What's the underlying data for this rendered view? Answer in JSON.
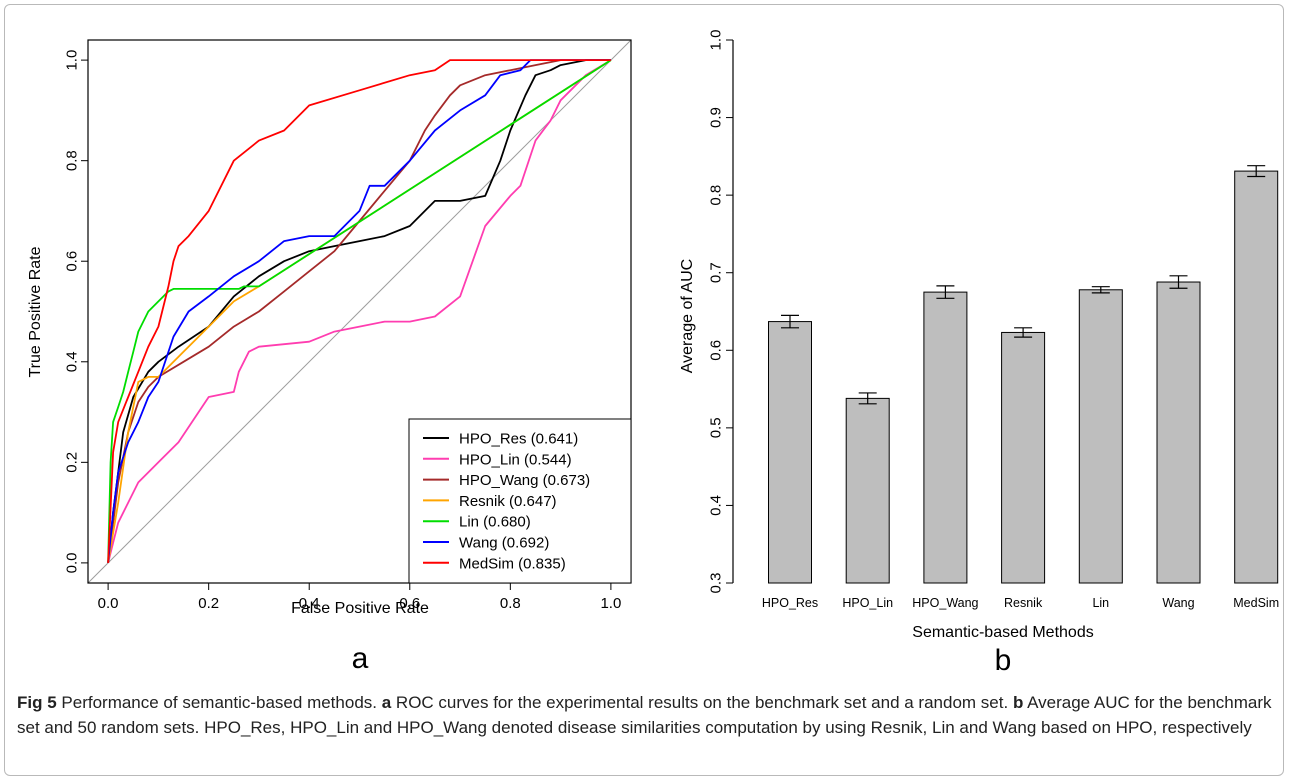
{
  "caption": {
    "fig_label": "Fig 5",
    "intro": " Performance of semantic-based methods. ",
    "label_a": "a",
    "text_a": " ROC curves for the experimental results on the benchmark set and a random set. ",
    "label_b": "b",
    "text_b": " Average AUC for the benchmark set and 50 random sets. HPO_Res, HPO_Lin and HPO_Wang denoted disease similarities computation by using Resnik, Lin and Wang based on HPO, respectively"
  },
  "chart_data": [
    {
      "type": "line",
      "panel_label": "a",
      "xlabel": "False Positive Rate",
      "ylabel": "True Positive Rate",
      "xlim": [
        -0.04,
        1.04
      ],
      "ylim": [
        -0.04,
        1.04
      ],
      "xticks": [
        "0.0",
        "0.2",
        "0.4",
        "0.6",
        "0.8",
        "1.0"
      ],
      "yticks": [
        "0.0",
        "0.2",
        "0.4",
        "0.6",
        "0.8",
        "1.0"
      ],
      "legend_position": "bottom-right",
      "diagonal_color": "#9e9e9e",
      "series": [
        {
          "name": "HPO_Res (0.641)",
          "color": "#000000",
          "x": [
            0,
            0.01,
            0.02,
            0.03,
            0.05,
            0.08,
            0.1,
            0.14,
            0.2,
            0.25,
            0.3,
            0.35,
            0.4,
            0.45,
            0.5,
            0.55,
            0.6,
            0.65,
            0.7,
            0.75,
            0.78,
            0.8,
            0.83,
            0.85,
            0.88,
            0.9,
            0.95,
            1.0
          ],
          "y": [
            0,
            0.1,
            0.18,
            0.26,
            0.33,
            0.38,
            0.4,
            0.43,
            0.47,
            0.53,
            0.57,
            0.6,
            0.62,
            0.63,
            0.64,
            0.65,
            0.67,
            0.72,
            0.72,
            0.73,
            0.8,
            0.86,
            0.93,
            0.97,
            0.98,
            0.99,
            1.0,
            1.0
          ]
        },
        {
          "name": "HPO_Lin (0.544)",
          "color": "#ff3db0",
          "x": [
            0,
            0.01,
            0.02,
            0.04,
            0.06,
            0.08,
            0.1,
            0.14,
            0.18,
            0.2,
            0.25,
            0.26,
            0.28,
            0.3,
            0.4,
            0.45,
            0.5,
            0.55,
            0.6,
            0.65,
            0.7,
            0.75,
            0.8,
            0.82,
            0.85,
            0.88,
            0.9,
            0.95,
            1.0
          ],
          "y": [
            0,
            0.04,
            0.08,
            0.12,
            0.16,
            0.18,
            0.2,
            0.24,
            0.3,
            0.33,
            0.34,
            0.38,
            0.42,
            0.43,
            0.44,
            0.46,
            0.47,
            0.48,
            0.48,
            0.49,
            0.53,
            0.67,
            0.73,
            0.75,
            0.84,
            0.88,
            0.92,
            0.97,
            1.0
          ]
        },
        {
          "name": "HPO_Wang (0.673)",
          "color": "#a52a2a",
          "x": [
            0,
            0.02,
            0.04,
            0.06,
            0.08,
            0.1,
            0.15,
            0.2,
            0.25,
            0.3,
            0.35,
            0.4,
            0.45,
            0.5,
            0.55,
            0.6,
            0.63,
            0.65,
            0.68,
            0.7,
            0.75,
            0.8,
            0.85,
            0.9,
            0.95,
            1.0
          ],
          "y": [
            0,
            0.16,
            0.26,
            0.32,
            0.35,
            0.37,
            0.4,
            0.43,
            0.47,
            0.5,
            0.54,
            0.58,
            0.62,
            0.68,
            0.74,
            0.8,
            0.86,
            0.89,
            0.93,
            0.95,
            0.97,
            0.98,
            0.99,
            1.0,
            1.0,
            1.0
          ]
        },
        {
          "name": "Resnik (0.647)",
          "color": "#ffa500",
          "x": [
            0,
            0.02,
            0.04,
            0.06,
            0.08,
            0.1,
            0.15,
            0.2,
            0.25,
            0.3,
            1.0
          ],
          "y": [
            0,
            0.12,
            0.26,
            0.36,
            0.37,
            0.37,
            0.42,
            0.47,
            0.52,
            0.55,
            1.0
          ]
        },
        {
          "name": "Lin (0.680)",
          "color": "#00dd00",
          "x": [
            0,
            0.005,
            0.01,
            0.02,
            0.03,
            0.04,
            0.05,
            0.06,
            0.08,
            0.1,
            0.12,
            0.13,
            0.26,
            0.27,
            0.3,
            1.0
          ],
          "y": [
            0,
            0.2,
            0.28,
            0.31,
            0.34,
            0.38,
            0.42,
            0.46,
            0.5,
            0.52,
            0.54,
            0.545,
            0.545,
            0.55,
            0.55,
            1.0
          ]
        },
        {
          "name": "Wang (0.692)",
          "color": "#0000ff",
          "x": [
            0,
            0.01,
            0.02,
            0.04,
            0.06,
            0.08,
            0.1,
            0.13,
            0.16,
            0.2,
            0.25,
            0.3,
            0.35,
            0.4,
            0.45,
            0.5,
            0.52,
            0.55,
            0.6,
            0.65,
            0.7,
            0.75,
            0.78,
            0.82,
            0.84,
            1.0
          ],
          "y": [
            0,
            0.1,
            0.18,
            0.24,
            0.28,
            0.33,
            0.36,
            0.45,
            0.5,
            0.53,
            0.57,
            0.6,
            0.64,
            0.65,
            0.65,
            0.7,
            0.75,
            0.75,
            0.8,
            0.86,
            0.9,
            0.93,
            0.97,
            0.98,
            1.0,
            1.0
          ]
        },
        {
          "name": "MedSim (0.835)",
          "color": "#ff0000",
          "x": [
            0,
            0.01,
            0.02,
            0.04,
            0.06,
            0.08,
            0.1,
            0.12,
            0.13,
            0.14,
            0.16,
            0.2,
            0.25,
            0.3,
            0.35,
            0.4,
            0.5,
            0.6,
            0.65,
            0.68,
            0.7,
            1.0
          ],
          "y": [
            0,
            0.22,
            0.28,
            0.33,
            0.38,
            0.43,
            0.47,
            0.55,
            0.6,
            0.63,
            0.65,
            0.7,
            0.8,
            0.84,
            0.86,
            0.91,
            0.94,
            0.97,
            0.98,
            1.0,
            1.0,
            1.0
          ]
        }
      ]
    },
    {
      "type": "bar",
      "panel_label": "b",
      "xlabel": "Semantic-based Methods",
      "ylabel": "Average of AUC",
      "ylim": [
        0.3,
        1.0
      ],
      "yticks": [
        "0.3",
        "0.4",
        "0.5",
        "0.6",
        "0.7",
        "0.8",
        "0.9",
        "1.0"
      ],
      "bar_color": "#bebebe",
      "categories": [
        "HPO_Res",
        "HPO_Lin",
        "HPO_Wang",
        "Resnik",
        "Lin",
        "Wang",
        "MedSim"
      ],
      "values": [
        0.637,
        0.538,
        0.675,
        0.623,
        0.678,
        0.688,
        0.831
      ],
      "errors": [
        0.008,
        0.007,
        0.008,
        0.006,
        0.004,
        0.008,
        0.007
      ]
    }
  ]
}
